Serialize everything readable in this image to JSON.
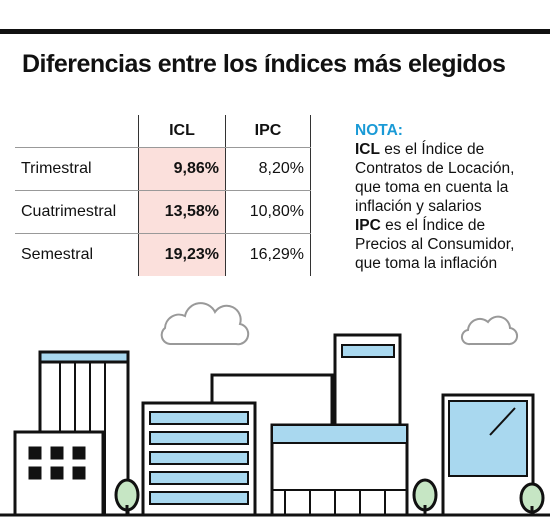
{
  "title": "Diferencias entre los índices más elegidos",
  "table": {
    "header": [
      "ICL",
      "IPC"
    ],
    "rows": [
      [
        "Trimestral",
        "9,86%",
        "8,20%"
      ],
      [
        "Cuatrimestral",
        "13,58%",
        "10,80%"
      ],
      [
        "Semestral",
        "19,23%",
        "16,29%"
      ]
    ]
  },
  "note": {
    "title": "NOTA:",
    "items": [
      {
        "term": "ICL",
        "text": "es el Índice de Contratos de Locación, que toma en cuenta la inflación y salarios"
      },
      {
        "term": "IPC",
        "text": "es el Índice de Precios al Consumidor, que toma la inflación"
      }
    ]
  }
}
